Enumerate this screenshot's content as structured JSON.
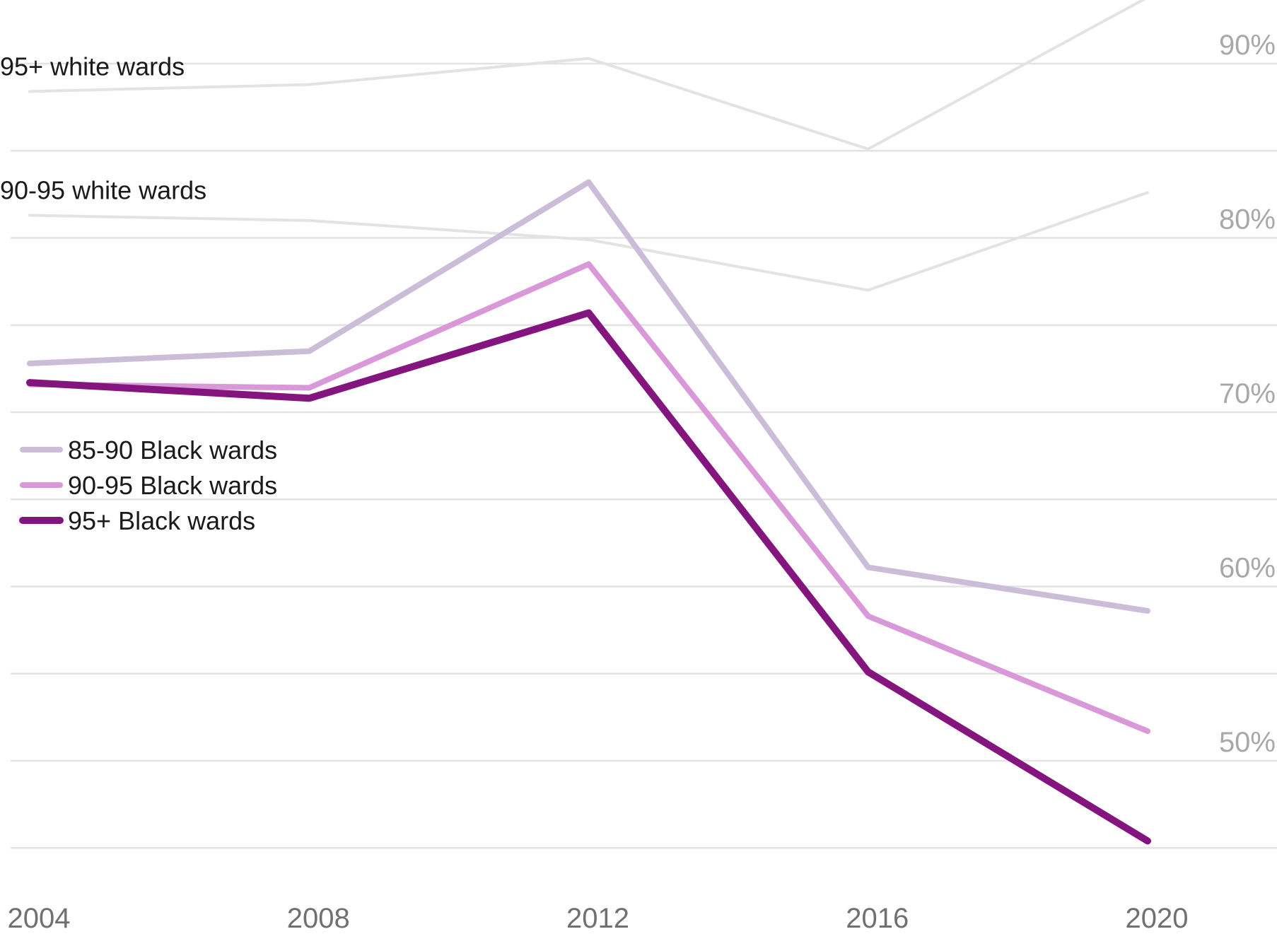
{
  "chart_data": {
    "type": "line",
    "title": "",
    "xlabel": "",
    "ylabel": "",
    "x": [
      2004,
      2008,
      2012,
      2016,
      2020
    ],
    "xtick_labels": [
      "2004",
      "2008",
      "2012",
      "2016",
      "2020"
    ],
    "yticks": [
      50,
      60,
      70,
      80,
      90
    ],
    "ytick_labels": [
      "50%",
      "60%",
      "70%",
      "80%",
      "90%"
    ],
    "gridlines": [
      45,
      50,
      55,
      60,
      65,
      70,
      75,
      80,
      85,
      90
    ],
    "ylim": [
      42,
      95
    ],
    "grid": true,
    "legend_position": "left-middle",
    "series": [
      {
        "name": "95+ white wards",
        "values": [
          88.4,
          88.8,
          90.3,
          85.1,
          93.8
        ],
        "color": "#e3e3e3",
        "width": 4,
        "style": "direct-label"
      },
      {
        "name": "90-95 white wards",
        "values": [
          81.3,
          81.0,
          79.9,
          77.0,
          82.6
        ],
        "color": "#e3e3e3",
        "width": 4,
        "style": "direct-label"
      },
      {
        "name": "85-90 Black wards",
        "values": [
          72.8,
          73.5,
          83.2,
          61.1,
          58.6
        ],
        "color": "#cbbcd8",
        "width": 8,
        "style": "legend"
      },
      {
        "name": "90-95 Black wards",
        "values": [
          71.6,
          71.4,
          78.5,
          58.3,
          51.7
        ],
        "color": "#d998d8",
        "width": 8,
        "style": "legend"
      },
      {
        "name": "95+ Black wards",
        "values": [
          71.7,
          70.8,
          75.7,
          55.1,
          45.4
        ],
        "color": "#84147e",
        "width": 10,
        "style": "legend"
      }
    ]
  }
}
